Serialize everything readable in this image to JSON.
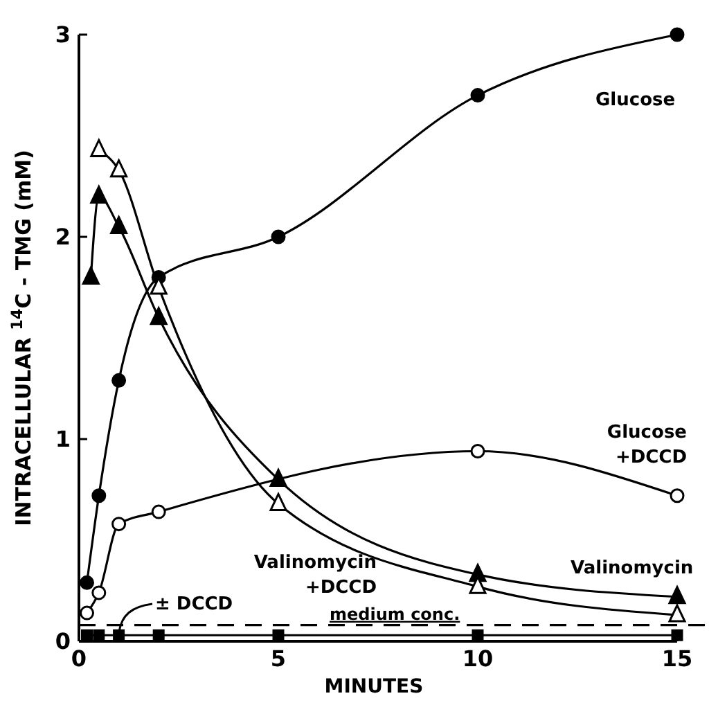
{
  "chart_data": {
    "type": "line",
    "xlabel": "MINUTES",
    "ylabel": "INTRACELLULAR $^{14}$C - TMG (mM)",
    "xlim": [
      0,
      15
    ],
    "ylim": [
      0,
      3
    ],
    "xticks": [
      0,
      5,
      10,
      15
    ],
    "yticks": [
      0,
      1,
      2,
      3
    ],
    "line_style": "solid",
    "series": [
      {
        "name": "Glucose",
        "color": "#000000",
        "marker": "circle",
        "x": [
          0.2,
          0.5,
          1,
          2,
          5,
          10,
          15
        ],
        "values": [
          0.29,
          0.72,
          1.29,
          1.8,
          2.0,
          2.7,
          3.0
        ]
      },
      {
        "name": "Glucose +DCCD",
        "color": "#ffffff",
        "marker": "circle",
        "x": [
          0.2,
          0.5,
          1,
          2,
          10,
          15
        ],
        "values": [
          0.14,
          0.24,
          0.58,
          0.64,
          0.94,
          0.72
        ]
      },
      {
        "name": "Valinomycin",
        "color": "#000000",
        "marker": "triangle",
        "x": [
          0.3,
          0.5,
          1,
          2,
          5,
          10,
          15
        ],
        "values": [
          1.8,
          2.2,
          2.05,
          1.6,
          0.8,
          0.33,
          0.22
        ]
      },
      {
        "name": "Valinomycin +DCCD",
        "color": "#ffffff",
        "marker": "triangle",
        "x": [
          0.5,
          1,
          2,
          5,
          10,
          15
        ],
        "values": [
          2.43,
          2.33,
          1.75,
          0.68,
          0.27,
          0.13
        ]
      },
      {
        "name": "± DCCD",
        "color": "#000000",
        "marker": "square",
        "x": [
          0.2,
          0.5,
          1,
          2,
          5,
          10,
          15
        ],
        "values": [
          0.03,
          0.03,
          0.03,
          0.03,
          0.03,
          0.03,
          0.03
        ]
      }
    ],
    "ref_lines": [
      {
        "axis": "y",
        "value": 0.08,
        "label": "medium conc.",
        "line_style": "dashed",
        "color": "#000000"
      }
    ]
  }
}
